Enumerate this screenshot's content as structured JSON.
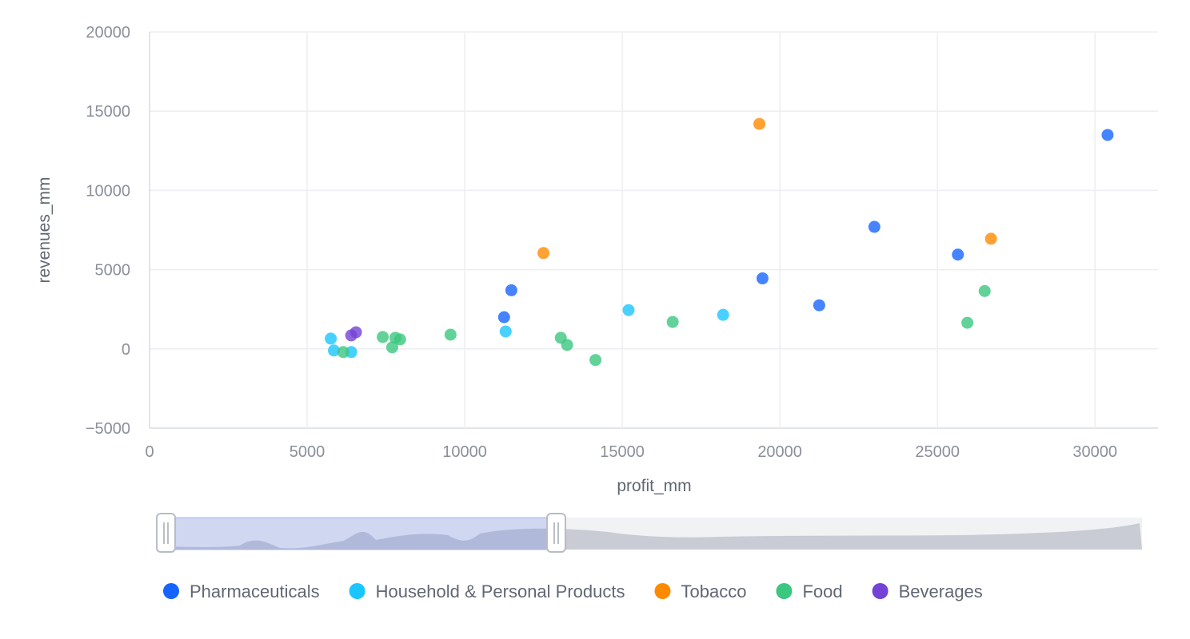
{
  "chart_data": {
    "type": "scatter",
    "xlabel": "profit_mm",
    "ylabel": "revenues_mm",
    "xlim": [
      0,
      32000
    ],
    "ylim": [
      -5000,
      20000
    ],
    "x_ticks": [
      0,
      5000,
      10000,
      15000,
      20000,
      25000,
      30000
    ],
    "y_ticks": [
      -5000,
      0,
      5000,
      10000,
      15000,
      20000
    ],
    "x_tick_labels": [
      "0",
      "5000",
      "10000",
      "15000",
      "20000",
      "25000",
      "30000"
    ],
    "y_tick_labels": [
      "−5000",
      "0",
      "5000",
      "10000",
      "15000",
      "20000"
    ],
    "grid": true,
    "legend_position": "bottom",
    "series": [
      {
        "name": "Pharmaceuticals",
        "color": "#1664FF",
        "points": [
          [
            11250,
            2000
          ],
          [
            11480,
            3700
          ],
          [
            19450,
            4450
          ],
          [
            21250,
            2750
          ],
          [
            23000,
            7700
          ],
          [
            25650,
            5950
          ],
          [
            30400,
            13500
          ]
        ]
      },
      {
        "name": "Household & Personal Products",
        "color": "#1AC6FF",
        "points": [
          [
            5750,
            650
          ],
          [
            5850,
            -100
          ],
          [
            6400,
            -200
          ],
          [
            11300,
            1100
          ],
          [
            15200,
            2450
          ],
          [
            18200,
            2150
          ]
        ]
      },
      {
        "name": "Tobacco",
        "color": "#FF8A00",
        "points": [
          [
            12500,
            6050
          ],
          [
            19350,
            14200
          ],
          [
            26700,
            6950
          ]
        ]
      },
      {
        "name": "Food",
        "color": "#3CC780",
        "points": [
          [
            6150,
            -200
          ],
          [
            7400,
            750
          ],
          [
            7700,
            100
          ],
          [
            7800,
            700
          ],
          [
            7950,
            600
          ],
          [
            9550,
            900
          ],
          [
            13050,
            700
          ],
          [
            13250,
            250
          ],
          [
            14150,
            -700
          ],
          [
            16600,
            1700
          ],
          [
            25950,
            1650
          ],
          [
            26500,
            3650
          ]
        ]
      },
      {
        "name": "Beverages",
        "color": "#7442D4",
        "points": [
          [
            6400,
            850
          ],
          [
            6550,
            1050
          ]
        ]
      }
    ],
    "datazoom": {
      "start": 0,
      "end": 0.4
    }
  }
}
